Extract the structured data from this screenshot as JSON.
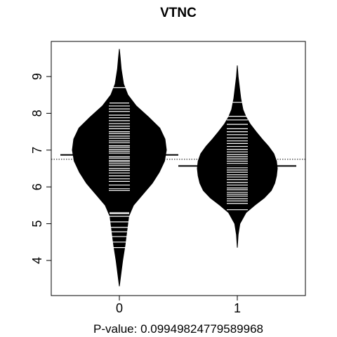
{
  "chart_data": {
    "type": "beanplot",
    "title": "VTNC",
    "xlabel": "P-value: 0.09949824779589968",
    "ylabel": "",
    "categories": [
      "0",
      "1"
    ],
    "ylim": [
      3.1,
      9.8
    ],
    "yticks": [
      4,
      5,
      6,
      7,
      8,
      9
    ],
    "overall_mean": 6.75,
    "grid": false,
    "legend": "none",
    "groups": [
      {
        "category": "0",
        "mean": 6.87,
        "density": [
          [
            3.3,
            0.0
          ],
          [
            3.6,
            0.03
          ],
          [
            4.0,
            0.07
          ],
          [
            4.4,
            0.12
          ],
          [
            4.8,
            0.16
          ],
          [
            5.2,
            0.2
          ],
          [
            5.5,
            0.3
          ],
          [
            5.8,
            0.5
          ],
          [
            6.1,
            0.7
          ],
          [
            6.4,
            0.85
          ],
          [
            6.7,
            0.96
          ],
          [
            7.0,
            1.0
          ],
          [
            7.3,
            0.97
          ],
          [
            7.6,
            0.86
          ],
          [
            7.9,
            0.62
          ],
          [
            8.2,
            0.36
          ],
          [
            8.5,
            0.18
          ],
          [
            8.8,
            0.09
          ],
          [
            9.2,
            0.04
          ],
          [
            9.5,
            0.02
          ],
          [
            9.75,
            0.0
          ]
        ],
        "observations": [
          4.35,
          4.5,
          4.65,
          4.78,
          4.9,
          5.05,
          5.2,
          5.27,
          5.3,
          5.9,
          5.95,
          6.05,
          6.15,
          6.22,
          6.3,
          6.38,
          6.45,
          6.5,
          6.58,
          6.63,
          6.68,
          6.72,
          6.78,
          6.82,
          6.88,
          6.92,
          6.97,
          7.02,
          7.08,
          7.12,
          7.2,
          7.25,
          7.32,
          7.38,
          7.45,
          7.5,
          7.58,
          7.65,
          7.72,
          7.8,
          7.88,
          7.95,
          8.05,
          8.12,
          8.2,
          8.28,
          8.7
        ]
      },
      {
        "category": "1",
        "mean": 6.57,
        "density": [
          [
            4.35,
            0.0
          ],
          [
            4.7,
            0.02
          ],
          [
            5.0,
            0.06
          ],
          [
            5.3,
            0.2
          ],
          [
            5.5,
            0.4
          ],
          [
            5.7,
            0.62
          ],
          [
            5.9,
            0.78
          ],
          [
            6.1,
            0.86
          ],
          [
            6.3,
            0.9
          ],
          [
            6.5,
            0.92
          ],
          [
            6.7,
            0.9
          ],
          [
            6.9,
            0.84
          ],
          [
            7.1,
            0.72
          ],
          [
            7.3,
            0.57
          ],
          [
            7.5,
            0.43
          ],
          [
            7.7,
            0.3
          ],
          [
            7.9,
            0.2
          ],
          [
            8.1,
            0.13
          ],
          [
            8.4,
            0.08
          ],
          [
            8.7,
            0.05
          ],
          [
            9.0,
            0.02
          ],
          [
            9.3,
            0.0
          ]
        ],
        "observations": [
          5.38,
          5.55,
          5.62,
          5.68,
          5.75,
          5.8,
          5.85,
          5.92,
          5.97,
          6.05,
          6.12,
          6.2,
          6.27,
          6.33,
          6.4,
          6.46,
          6.52,
          6.58,
          6.64,
          6.7,
          6.76,
          6.82,
          6.88,
          6.95,
          7.02,
          7.1,
          7.18,
          7.25,
          7.33,
          7.42,
          7.5,
          7.58,
          7.7,
          7.82,
          7.92,
          8.3
        ]
      }
    ]
  }
}
